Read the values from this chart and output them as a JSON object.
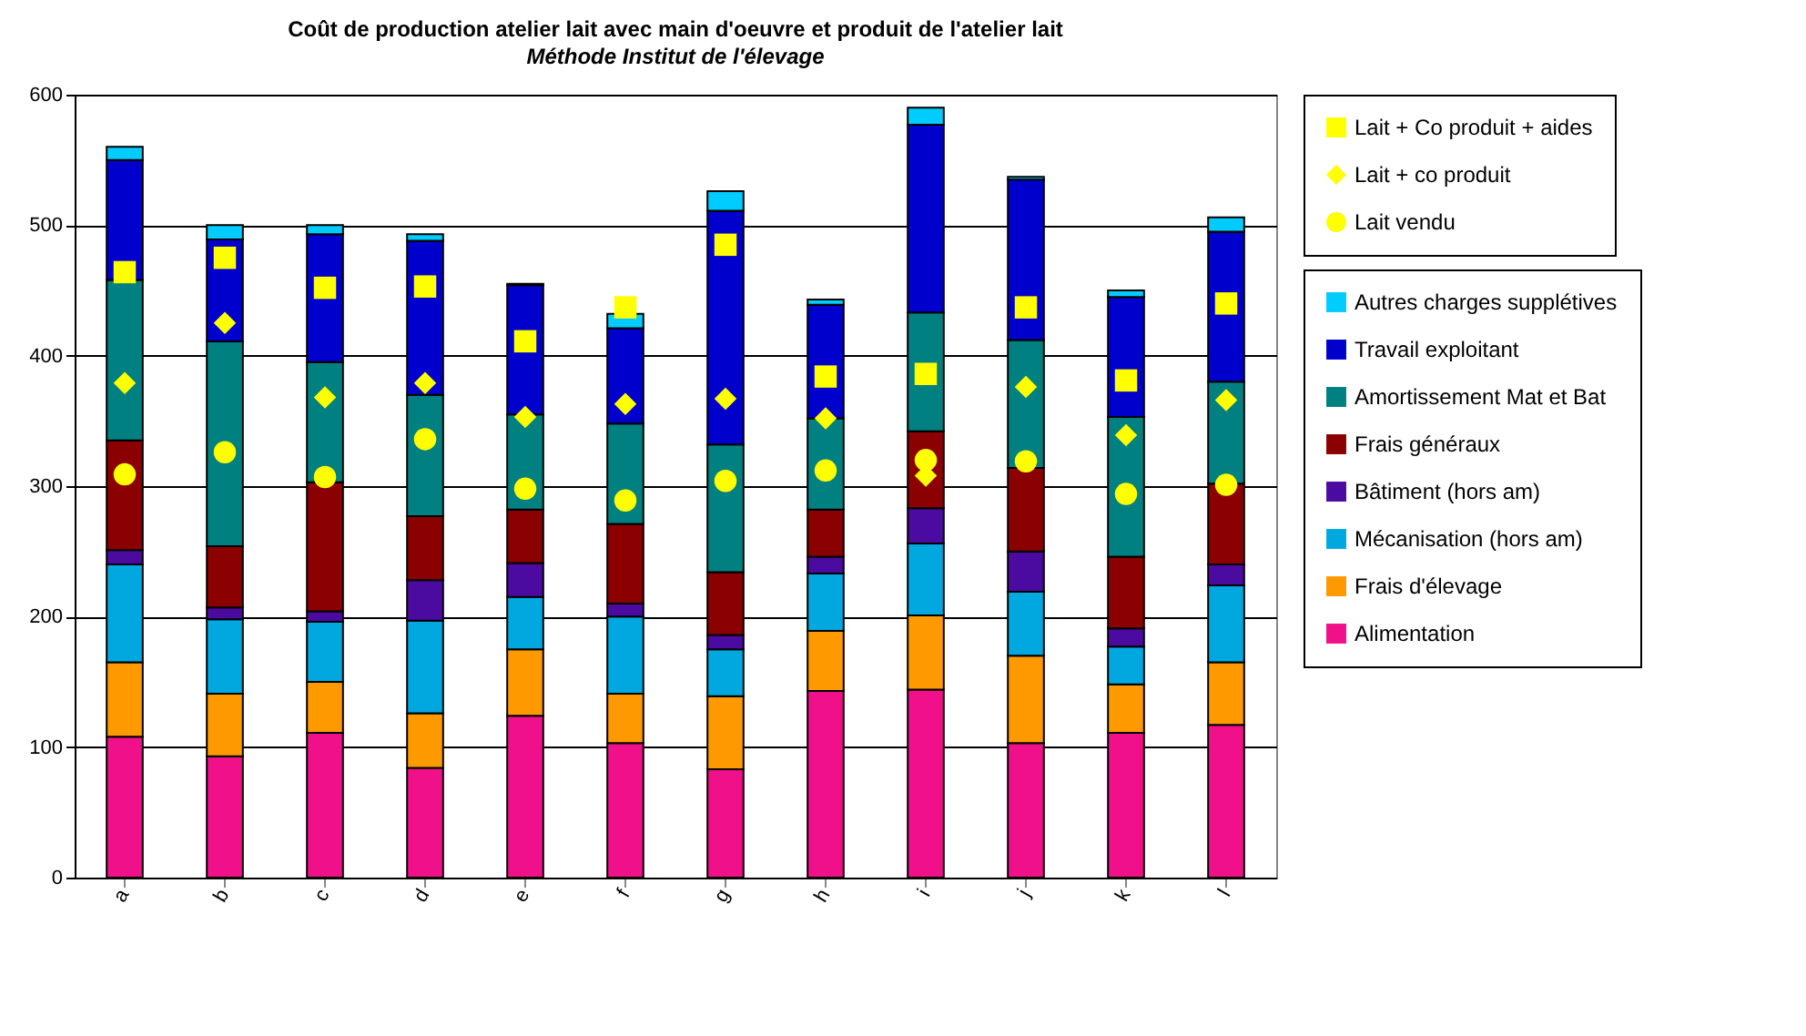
{
  "chart_data": {
    "type": "bar",
    "title": "Coût de production atelier lait avec main d'oeuvre et produit de l'atelier lait",
    "subtitle": "Méthode Institut de l'élevage",
    "categories": [
      "a",
      "b",
      "c",
      "d",
      "e",
      "f",
      "g",
      "h",
      "i",
      "j",
      "k",
      "l"
    ],
    "stacked": true,
    "ylim": [
      0,
      600
    ],
    "yticks": [
      0,
      100,
      200,
      300,
      400,
      500,
      600
    ],
    "grid": "y",
    "legend": "right",
    "series": [
      {
        "name": "Alimentation",
        "color": "#f0108a",
        "values": [
          108,
          93,
          111,
          84,
          124,
          103,
          83,
          143,
          144,
          103,
          111,
          117
        ]
      },
      {
        "name": "Frais d'élevage",
        "color": "#ff9900",
        "values": [
          57,
          48,
          39,
          42,
          51,
          38,
          56,
          46,
          57,
          67,
          37,
          48
        ]
      },
      {
        "name": "Mécanisation (hors am)",
        "color": "#00a8e0",
        "values": [
          75,
          57,
          46,
          71,
          40,
          59,
          36,
          44,
          55,
          49,
          29,
          59
        ]
      },
      {
        "name": "Bâtiment (hors am)",
        "color": "#4b0aa0",
        "values": [
          11,
          9,
          8,
          31,
          26,
          10,
          11,
          13,
          27,
          31,
          14,
          16
        ]
      },
      {
        "name": "Frais généraux",
        "color": "#8b0000",
        "values": [
          84,
          47,
          99,
          49,
          41,
          61,
          48,
          36,
          59,
          64,
          55,
          62
        ]
      },
      {
        "name": "Amortissement Mat et Bat",
        "color": "#008080",
        "values": [
          123,
          157,
          92,
          93,
          73,
          77,
          98,
          70,
          91,
          98,
          107,
          78
        ]
      },
      {
        "name": "Travail exploitant",
        "color": "#0000cc",
        "values": [
          92,
          78,
          98,
          118,
          99,
          73,
          179,
          87,
          144,
          123,
          92,
          115
        ]
      },
      {
        "name": "Autres charges supplétives",
        "color": "#00ccff",
        "values": [
          10,
          11,
          7,
          5,
          1,
          11,
          15,
          4,
          13,
          2,
          5,
          11
        ]
      },
      {
        "name": "Lait + Co produit + aides",
        "type": "scatter",
        "marker": "square",
        "color": "#ffff00",
        "values": [
          464,
          475,
          452,
          453,
          411,
          437,
          485,
          384,
          386,
          437,
          381,
          440
        ]
      },
      {
        "name": "Lait + co produit",
        "type": "scatter",
        "marker": "diamond",
        "color": "#ffff00",
        "values": [
          379,
          425,
          368,
          379,
          353,
          363,
          367,
          352,
          308,
          376,
          339,
          366
        ]
      },
      {
        "name": "Lait vendu",
        "type": "scatter",
        "marker": "circle",
        "color": "#ffff00",
        "values": [
          309,
          326,
          307,
          336,
          298,
          289,
          304,
          312,
          320,
          319,
          294,
          301
        ]
      }
    ]
  }
}
